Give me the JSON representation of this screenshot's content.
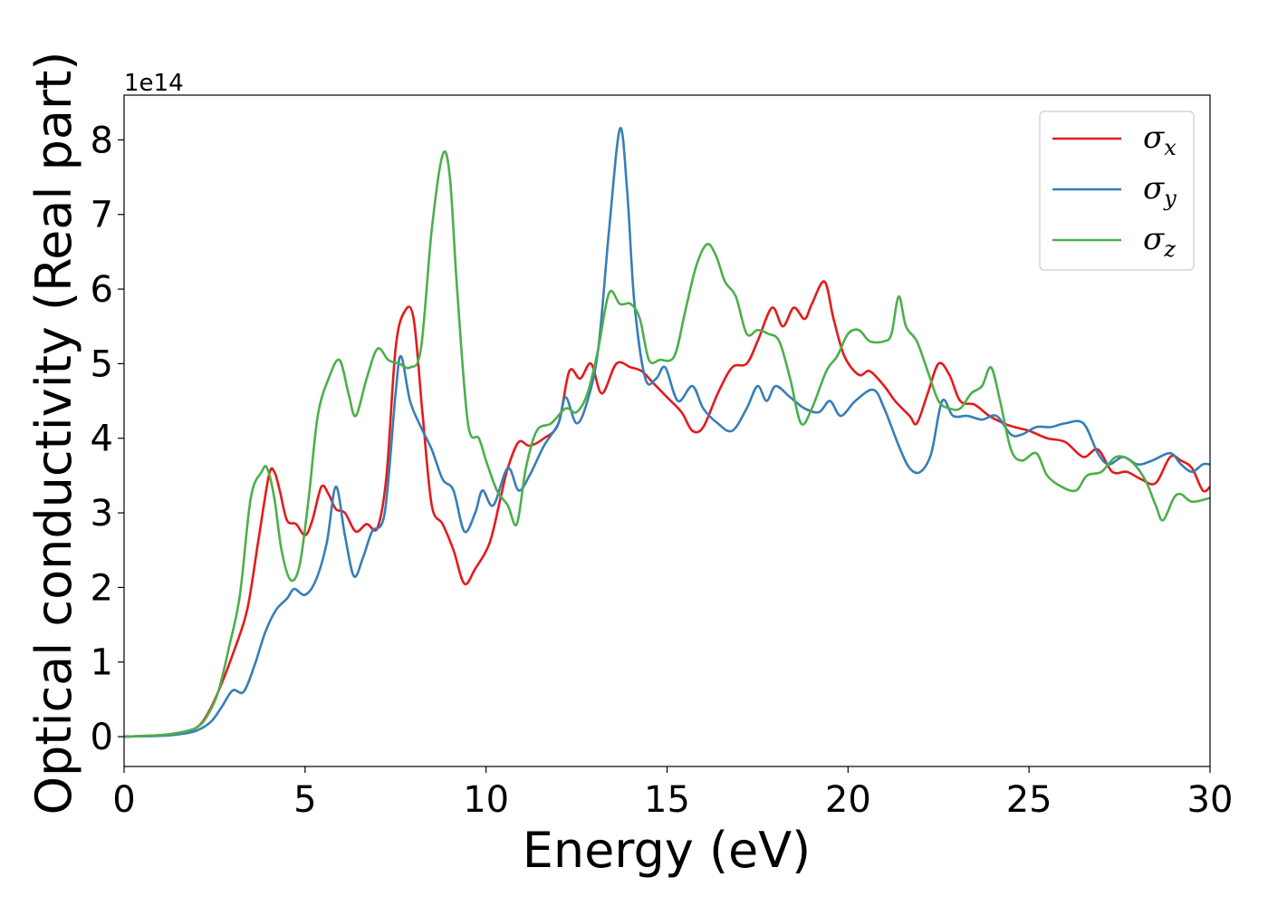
{
  "chart_data": {
    "type": "line",
    "xlabel": "Energy (eV)",
    "ylabel": "Optical conductivity (Real part)",
    "y_offset_label": "1e14",
    "xlim": [
      0,
      30
    ],
    "ylim": [
      -0.4,
      8.6
    ],
    "x_ticks": [
      0,
      5,
      10,
      15,
      20,
      25,
      30
    ],
    "x_tick_labels": [
      "0",
      "5",
      "10",
      "15",
      "20",
      "25",
      "30"
    ],
    "y_ticks": [
      0,
      1,
      2,
      3,
      4,
      5,
      6,
      7,
      8
    ],
    "y_tick_labels": [
      "0",
      "1",
      "2",
      "3",
      "4",
      "5",
      "6",
      "7",
      "8"
    ],
    "grid": false,
    "legend_position": "top-right",
    "series": [
      {
        "name": "σx",
        "symbol": "σ",
        "subscript": "x",
        "color": "#e41a1c",
        "points": [
          [
            0,
            0
          ],
          [
            1,
            0.02
          ],
          [
            1.5,
            0.05
          ],
          [
            2,
            0.12
          ],
          [
            2.3,
            0.3
          ],
          [
            2.6,
            0.6
          ],
          [
            3,
            1.1
          ],
          [
            3.4,
            1.7
          ],
          [
            3.7,
            2.6
          ],
          [
            4,
            3.5
          ],
          [
            4.15,
            3.55
          ],
          [
            4.3,
            3.3
          ],
          [
            4.5,
            2.9
          ],
          [
            4.75,
            2.85
          ],
          [
            5,
            2.7
          ],
          [
            5.2,
            2.9
          ],
          [
            5.45,
            3.35
          ],
          [
            5.65,
            3.25
          ],
          [
            5.85,
            3.05
          ],
          [
            6.1,
            3.0
          ],
          [
            6.4,
            2.75
          ],
          [
            6.7,
            2.85
          ],
          [
            7.0,
            2.8
          ],
          [
            7.25,
            3.5
          ],
          [
            7.5,
            5.2
          ],
          [
            7.75,
            5.7
          ],
          [
            8.0,
            5.6
          ],
          [
            8.25,
            4.3
          ],
          [
            8.5,
            3.1
          ],
          [
            8.8,
            2.85
          ],
          [
            9.1,
            2.5
          ],
          [
            9.4,
            2.05
          ],
          [
            9.7,
            2.25
          ],
          [
            10.1,
            2.6
          ],
          [
            10.4,
            3.2
          ],
          [
            10.6,
            3.6
          ],
          [
            10.9,
            3.95
          ],
          [
            11.2,
            3.9
          ],
          [
            11.6,
            4.0
          ],
          [
            12.0,
            4.2
          ],
          [
            12.3,
            4.9
          ],
          [
            12.6,
            4.8
          ],
          [
            12.9,
            5.0
          ],
          [
            13.2,
            4.6
          ],
          [
            13.6,
            5.0
          ],
          [
            14.0,
            4.95
          ],
          [
            14.3,
            4.9
          ],
          [
            14.6,
            4.75
          ],
          [
            15.0,
            4.55
          ],
          [
            15.4,
            4.35
          ],
          [
            15.7,
            4.1
          ],
          [
            16.0,
            4.15
          ],
          [
            16.4,
            4.6
          ],
          [
            16.8,
            4.95
          ],
          [
            17.2,
            5.0
          ],
          [
            17.5,
            5.3
          ],
          [
            17.9,
            5.75
          ],
          [
            18.2,
            5.5
          ],
          [
            18.5,
            5.75
          ],
          [
            18.8,
            5.6
          ],
          [
            19.0,
            5.8
          ],
          [
            19.35,
            6.1
          ],
          [
            19.6,
            5.6
          ],
          [
            19.9,
            5.1
          ],
          [
            20.3,
            4.85
          ],
          [
            20.6,
            4.9
          ],
          [
            21.0,
            4.7
          ],
          [
            21.3,
            4.5
          ],
          [
            21.7,
            4.3
          ],
          [
            21.9,
            4.2
          ],
          [
            22.2,
            4.6
          ],
          [
            22.5,
            5.0
          ],
          [
            22.8,
            4.85
          ],
          [
            23.1,
            4.5
          ],
          [
            23.5,
            4.45
          ],
          [
            23.9,
            4.3
          ],
          [
            24.3,
            4.2
          ],
          [
            24.6,
            4.15
          ],
          [
            25.0,
            4.1
          ],
          [
            25.5,
            4.0
          ],
          [
            26.0,
            3.95
          ],
          [
            26.5,
            3.75
          ],
          [
            26.9,
            3.85
          ],
          [
            27.3,
            3.55
          ],
          [
            27.7,
            3.55
          ],
          [
            28.1,
            3.45
          ],
          [
            28.5,
            3.4
          ],
          [
            28.9,
            3.75
          ],
          [
            29.2,
            3.7
          ],
          [
            29.5,
            3.6
          ],
          [
            29.8,
            3.3
          ],
          [
            30,
            3.35
          ]
        ]
      },
      {
        "name": "σy",
        "symbol": "σ",
        "subscript": "y",
        "color": "#377eb8",
        "points": [
          [
            0,
            0
          ],
          [
            1,
            0.01
          ],
          [
            1.5,
            0.03
          ],
          [
            2,
            0.08
          ],
          [
            2.4,
            0.2
          ],
          [
            2.7,
            0.4
          ],
          [
            3.0,
            0.62
          ],
          [
            3.3,
            0.6
          ],
          [
            3.6,
            0.95
          ],
          [
            3.9,
            1.4
          ],
          [
            4.2,
            1.7
          ],
          [
            4.5,
            1.85
          ],
          [
            4.7,
            1.98
          ],
          [
            5.0,
            1.9
          ],
          [
            5.3,
            2.1
          ],
          [
            5.6,
            2.6
          ],
          [
            5.85,
            3.35
          ],
          [
            6.1,
            2.7
          ],
          [
            6.35,
            2.15
          ],
          [
            6.6,
            2.4
          ],
          [
            6.85,
            2.75
          ],
          [
            7.2,
            3.0
          ],
          [
            7.5,
            4.6
          ],
          [
            7.65,
            5.1
          ],
          [
            7.9,
            4.5
          ],
          [
            8.2,
            4.15
          ],
          [
            8.5,
            3.85
          ],
          [
            8.8,
            3.45
          ],
          [
            9.1,
            3.3
          ],
          [
            9.4,
            2.75
          ],
          [
            9.7,
            3.0
          ],
          [
            9.9,
            3.3
          ],
          [
            10.2,
            3.1
          ],
          [
            10.6,
            3.6
          ],
          [
            10.9,
            3.3
          ],
          [
            11.2,
            3.5
          ],
          [
            11.6,
            3.9
          ],
          [
            12.0,
            4.2
          ],
          [
            12.2,
            4.55
          ],
          [
            12.5,
            4.2
          ],
          [
            12.8,
            4.5
          ],
          [
            13.1,
            5.2
          ],
          [
            13.4,
            6.8
          ],
          [
            13.7,
            8.15
          ],
          [
            13.9,
            7.3
          ],
          [
            14.1,
            5.8
          ],
          [
            14.4,
            4.8
          ],
          [
            14.7,
            4.8
          ],
          [
            14.95,
            4.95
          ],
          [
            15.3,
            4.5
          ],
          [
            15.7,
            4.7
          ],
          [
            16.0,
            4.4
          ],
          [
            16.4,
            4.2
          ],
          [
            16.8,
            4.1
          ],
          [
            17.2,
            4.4
          ],
          [
            17.5,
            4.7
          ],
          [
            17.75,
            4.5
          ],
          [
            18.0,
            4.7
          ],
          [
            18.4,
            4.55
          ],
          [
            18.8,
            4.4
          ],
          [
            19.2,
            4.35
          ],
          [
            19.5,
            4.5
          ],
          [
            19.8,
            4.3
          ],
          [
            20.2,
            4.5
          ],
          [
            20.7,
            4.65
          ],
          [
            21.0,
            4.4
          ],
          [
            21.4,
            3.9
          ],
          [
            21.7,
            3.6
          ],
          [
            22.0,
            3.55
          ],
          [
            22.3,
            3.8
          ],
          [
            22.6,
            4.5
          ],
          [
            22.9,
            4.3
          ],
          [
            23.3,
            4.3
          ],
          [
            23.7,
            4.25
          ],
          [
            24.1,
            4.3
          ],
          [
            24.5,
            4.05
          ],
          [
            24.8,
            4.05
          ],
          [
            25.2,
            4.15
          ],
          [
            25.6,
            4.15
          ],
          [
            26.0,
            4.2
          ],
          [
            26.5,
            4.2
          ],
          [
            26.9,
            3.8
          ],
          [
            27.2,
            3.65
          ],
          [
            27.6,
            3.75
          ],
          [
            28.0,
            3.65
          ],
          [
            28.4,
            3.7
          ],
          [
            28.9,
            3.8
          ],
          [
            29.2,
            3.65
          ],
          [
            29.5,
            3.55
          ],
          [
            29.8,
            3.65
          ],
          [
            30,
            3.65
          ]
        ]
      },
      {
        "name": "σz",
        "symbol": "σ",
        "subscript": "z",
        "color": "#4daf4a",
        "points": [
          [
            0,
            0
          ],
          [
            1,
            0.02
          ],
          [
            1.5,
            0.05
          ],
          [
            2,
            0.12
          ],
          [
            2.3,
            0.28
          ],
          [
            2.6,
            0.6
          ],
          [
            2.9,
            1.2
          ],
          [
            3.2,
            1.9
          ],
          [
            3.5,
            3.2
          ],
          [
            3.8,
            3.55
          ],
          [
            3.95,
            3.6
          ],
          [
            4.15,
            3.2
          ],
          [
            4.35,
            2.5
          ],
          [
            4.6,
            2.1
          ],
          [
            4.85,
            2.3
          ],
          [
            5.1,
            3.2
          ],
          [
            5.35,
            4.3
          ],
          [
            5.65,
            4.8
          ],
          [
            5.95,
            5.05
          ],
          [
            6.2,
            4.6
          ],
          [
            6.4,
            4.3
          ],
          [
            6.7,
            4.8
          ],
          [
            7.0,
            5.2
          ],
          [
            7.3,
            5.05
          ],
          [
            7.6,
            5.0
          ],
          [
            7.9,
            4.95
          ],
          [
            8.2,
            5.2
          ],
          [
            8.5,
            6.8
          ],
          [
            8.8,
            7.8
          ],
          [
            9.0,
            7.5
          ],
          [
            9.2,
            6.0
          ],
          [
            9.5,
            4.2
          ],
          [
            9.8,
            4.0
          ],
          [
            10.0,
            3.7
          ],
          [
            10.3,
            3.3
          ],
          [
            10.6,
            3.1
          ],
          [
            10.85,
            2.85
          ],
          [
            11.1,
            3.6
          ],
          [
            11.4,
            4.1
          ],
          [
            11.8,
            4.2
          ],
          [
            12.2,
            4.4
          ],
          [
            12.5,
            4.35
          ],
          [
            12.8,
            4.6
          ],
          [
            13.1,
            5.2
          ],
          [
            13.4,
            5.95
          ],
          [
            13.7,
            5.8
          ],
          [
            14.0,
            5.8
          ],
          [
            14.25,
            5.6
          ],
          [
            14.5,
            5.05
          ],
          [
            14.8,
            5.05
          ],
          [
            15.2,
            5.1
          ],
          [
            15.5,
            5.7
          ],
          [
            15.8,
            6.3
          ],
          [
            16.1,
            6.6
          ],
          [
            16.35,
            6.45
          ],
          [
            16.6,
            6.1
          ],
          [
            16.9,
            5.9
          ],
          [
            17.2,
            5.4
          ],
          [
            17.5,
            5.45
          ],
          [
            17.8,
            5.4
          ],
          [
            18.1,
            5.3
          ],
          [
            18.4,
            4.8
          ],
          [
            18.7,
            4.2
          ],
          [
            19.0,
            4.4
          ],
          [
            19.4,
            4.9
          ],
          [
            19.7,
            5.1
          ],
          [
            20.0,
            5.4
          ],
          [
            20.3,
            5.45
          ],
          [
            20.6,
            5.3
          ],
          [
            21.0,
            5.3
          ],
          [
            21.2,
            5.4
          ],
          [
            21.4,
            5.9
          ],
          [
            21.6,
            5.5
          ],
          [
            21.9,
            5.3
          ],
          [
            22.2,
            4.9
          ],
          [
            22.5,
            4.5
          ],
          [
            22.8,
            4.4
          ],
          [
            23.1,
            4.4
          ],
          [
            23.4,
            4.6
          ],
          [
            23.7,
            4.7
          ],
          [
            23.95,
            4.95
          ],
          [
            24.2,
            4.5
          ],
          [
            24.5,
            3.85
          ],
          [
            24.8,
            3.7
          ],
          [
            25.2,
            3.8
          ],
          [
            25.5,
            3.5
          ],
          [
            25.9,
            3.35
          ],
          [
            26.3,
            3.3
          ],
          [
            26.6,
            3.5
          ],
          [
            27.0,
            3.55
          ],
          [
            27.4,
            3.75
          ],
          [
            27.8,
            3.7
          ],
          [
            28.2,
            3.45
          ],
          [
            28.5,
            3.1
          ],
          [
            28.7,
            2.9
          ],
          [
            29.0,
            3.2
          ],
          [
            29.2,
            3.25
          ],
          [
            29.5,
            3.15
          ],
          [
            30,
            3.2
          ]
        ]
      }
    ]
  }
}
